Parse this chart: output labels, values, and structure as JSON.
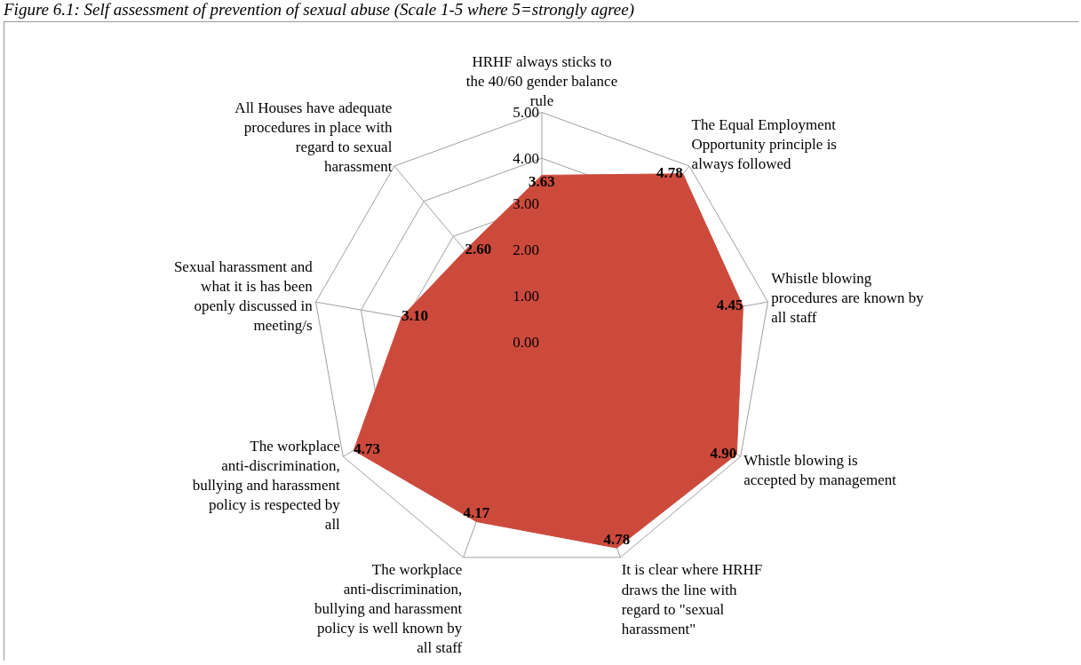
{
  "chart_data": {
    "type": "radar",
    "title": "Figure 6.1: Self assessment of prevention of sexual abuse (Scale 1-5 where 5=strongly agree)",
    "categories": [
      "HRHF always sticks to the 40/60 gender balance rule",
      "The Equal Employment Opportunity principle is always followed",
      "Whistle blowing procedures are known by all staff",
      "Whistle blowing is accepted by management",
      "It is clear where HRHF draws the line with regard to \"sexual harassment\"",
      "The workplace anti-discrimination, bullying and harassment policy is well known by all staff",
      "The workplace anti-discrimination, bullying and harassment policy is respected by all",
      "Sexual harassment and what it is has been openly discussed in meeting/s",
      "All Houses have adequate procedures in place with regard to sexual harassment"
    ],
    "series": [
      {
        "color": "#cc4a3c",
        "values": [
          3.63,
          4.78,
          4.45,
          4.9,
          4.78,
          4.17,
          4.73,
          3.1,
          2.6
        ]
      }
    ],
    "ylim": [
      0,
      5
    ],
    "yticks": [
      {
        "value": 0,
        "label": "0.00"
      },
      {
        "value": 1,
        "label": "1.00"
      },
      {
        "value": 2,
        "label": "2.00"
      },
      {
        "value": 3,
        "label": "3.00"
      },
      {
        "value": 4,
        "label": "4.00"
      },
      {
        "value": 5,
        "label": "5.00"
      }
    ],
    "value_labels": [
      "3.63",
      "4.78",
      "4.45",
      "4.90",
      "4.78",
      "4.17",
      "4.73",
      "3.10",
      "2.60"
    ],
    "grid": true
  }
}
